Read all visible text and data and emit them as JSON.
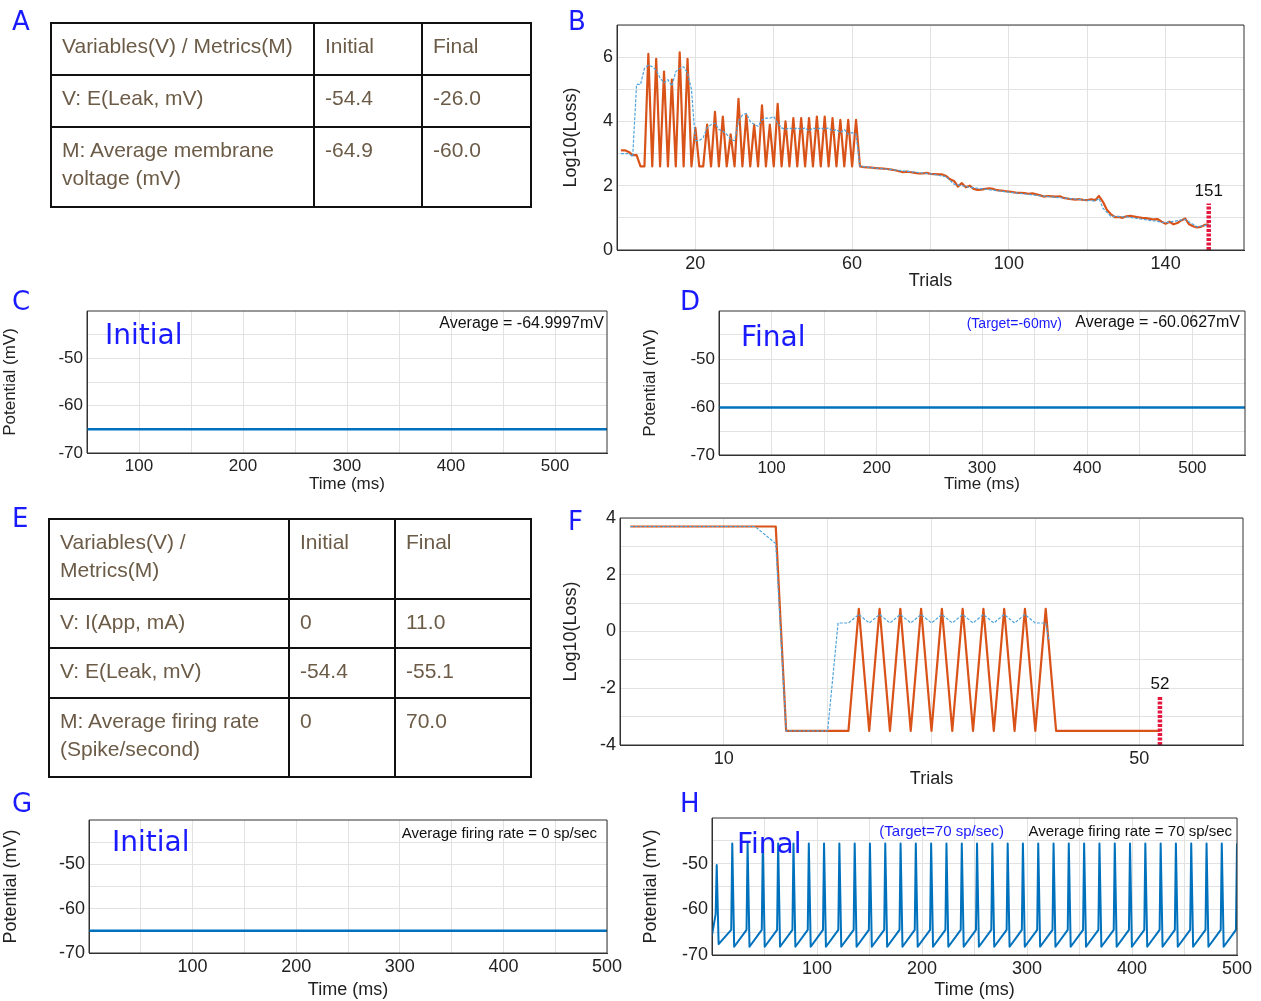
{
  "chart_data": [
    {
      "type": "other",
      "title": "A",
      "annotations": [
        "Variables(V) / Metrics(M)",
        "Initial",
        "Final",
        "V: E(Leak, mV)",
        "-54.4",
        "-26.0",
        "M: Average membrane voltage (mV)",
        "-64.9",
        "-60.0"
      ]
    },
    {
      "type": "line",
      "title": "B",
      "xlabel": "Trials",
      "ylabel": "Log10(Loss)",
      "xlim": [
        0,
        160
      ],
      "ylim": [
        0,
        7
      ],
      "xticks": [
        20,
        {
          "value": 40,
          "label": null
        },
        60,
        {
          "value": 80,
          "label": null
        },
        100,
        {
          "value": 120,
          "label": null
        },
        140
      ],
      "yticks": [
        0,
        {
          "value": 1,
          "label": null
        },
        2,
        {
          "value": 3,
          "label": null
        },
        4,
        {
          "value": 5,
          "label": null
        },
        6,
        {
          "value": 7,
          "label": null
        }
      ],
      "grid": true,
      "marker": "none",
      "series": [
        {
          "color": "#d95319",
          "line_style": "solid",
          "x": [
            1,
            2,
            3,
            4,
            5,
            6,
            7,
            8,
            9,
            10,
            11,
            12,
            13,
            14,
            15,
            16,
            17,
            18,
            19,
            20,
            21,
            22,
            23,
            24,
            25,
            26,
            27,
            28,
            29,
            30,
            31,
            32,
            33,
            34,
            35,
            36,
            37,
            38,
            39,
            40,
            41,
            42,
            43,
            44,
            45,
            46,
            47,
            48,
            49,
            50,
            51,
            52,
            53,
            54,
            55,
            56,
            57,
            58,
            59,
            60,
            61,
            62,
            63,
            64,
            65,
            66,
            67,
            68,
            69,
            70,
            71,
            72,
            73,
            74,
            75,
            76,
            77,
            78,
            79,
            80,
            81,
            82,
            83,
            84,
            85,
            86,
            87,
            88,
            89,
            90,
            91,
            92,
            93,
            94,
            95,
            96,
            97,
            98,
            99,
            100,
            101,
            102,
            103,
            104,
            105,
            106,
            107,
            108,
            109,
            110,
            111,
            112,
            113,
            114,
            115,
            116,
            117,
            118,
            119,
            120,
            121,
            122,
            123,
            124,
            125,
            126,
            127,
            128,
            129,
            130,
            131,
            132,
            133,
            134,
            135,
            136,
            137,
            138,
            139,
            140,
            141,
            142,
            143,
            144,
            145,
            146,
            147,
            148,
            149,
            150,
            151
          ],
          "values": [
            3.1,
            3.1,
            3.05,
            2.95,
            2.95,
            2.6,
            2.6,
            6.1,
            2.6,
            5.95,
            2.6,
            5.55,
            2.6,
            5.3,
            2.6,
            6.15,
            2.6,
            5.95,
            2.6,
            3.8,
            2.6,
            2.6,
            3.9,
            2.6,
            4.3,
            2.6,
            4.15,
            2.6,
            3.6,
            2.6,
            4.7,
            2.6,
            4.2,
            2.6,
            3.9,
            2.6,
            4.5,
            2.6,
            3.9,
            2.6,
            4.55,
            2.6,
            4.0,
            2.6,
            4.1,
            2.6,
            4.1,
            2.6,
            4.1,
            2.6,
            4.15,
            2.6,
            4.15,
            2.6,
            4.1,
            2.6,
            4.05,
            2.6,
            4.05,
            2.6,
            4.05,
            2.6,
            2.58,
            2.57,
            2.56,
            2.55,
            2.54,
            2.53,
            2.52,
            2.5,
            2.48,
            2.45,
            2.42,
            2.44,
            2.42,
            2.4,
            2.38,
            2.38,
            2.4,
            2.37,
            2.36,
            2.35,
            2.35,
            2.3,
            2.2,
            2.15,
            1.97,
            2.08,
            1.95,
            2.0,
            1.9,
            1.87,
            1.88,
            1.9,
            1.92,
            1.9,
            1.86,
            1.85,
            1.83,
            1.82,
            1.8,
            1.78,
            1.78,
            1.77,
            1.75,
            1.76,
            1.73,
            1.7,
            1.66,
            1.68,
            1.67,
            1.66,
            1.67,
            1.62,
            1.6,
            1.58,
            1.57,
            1.58,
            1.56,
            1.55,
            1.58,
            1.55,
            1.68,
            1.5,
            1.25,
            1.12,
            1.02,
            1.03,
            1.0,
            1.05,
            1.06,
            1.04,
            1.02,
            1.0,
            0.99,
            0.97,
            0.95,
            0.96,
            0.88,
            0.82,
            0.88,
            0.8,
            0.84,
            0.92,
            0.98,
            0.8,
            0.74,
            0.7,
            0.72,
            0.78,
            0.8
          ]
        },
        {
          "color": "#4da3dd",
          "line_style": "dashed",
          "x": [
            1,
            2,
            3,
            4,
            5,
            6,
            7,
            8,
            9,
            10,
            11,
            12,
            13,
            14,
            15,
            16,
            17,
            18,
            19,
            20,
            21,
            22,
            23,
            24,
            25,
            26,
            27,
            28,
            29,
            30,
            31,
            32,
            33,
            34,
            35,
            36,
            37,
            38,
            39,
            40,
            41,
            42,
            43,
            44,
            45,
            46,
            47,
            48,
            49,
            50,
            51,
            52,
            53,
            54,
            55,
            56,
            57,
            58,
            59,
            60,
            61,
            62,
            70,
            80,
            84,
            86,
            88,
            90,
            100,
            110,
            120,
            122,
            123,
            124,
            126,
            130,
            140,
            145,
            148,
            151
          ],
          "values": [
            3.0,
            3.0,
            3.0,
            2.9,
            5.15,
            5.15,
            5.65,
            5.75,
            5.7,
            5.6,
            5.35,
            5.2,
            5.3,
            5.1,
            5.55,
            5.65,
            5.7,
            5.5,
            5.0,
            3.4,
            3.4,
            3.5,
            3.8,
            3.9,
            3.95,
            3.75,
            3.7,
            3.6,
            3.45,
            3.4,
            4.0,
            4.2,
            4.25,
            4.0,
            3.9,
            3.85,
            4.05,
            4.1,
            4.1,
            4.15,
            3.95,
            3.8,
            3.75,
            3.8,
            3.75,
            3.8,
            3.75,
            3.8,
            3.7,
            3.8,
            3.75,
            3.8,
            3.75,
            3.8,
            3.7,
            3.75,
            3.65,
            3.75,
            3.6,
            3.65,
            3.6,
            2.6,
            2.5,
            2.37,
            2.28,
            2.05,
            2.0,
            1.95,
            1.8,
            1.66,
            1.55,
            1.52,
            1.6,
            1.3,
            1.05,
            1.03,
            0.85,
            0.95,
            0.72,
            0.78
          ]
        },
        {
          "color": "#e4173f",
          "line_style": "dashed",
          "x": [
            151,
            151
          ],
          "values": [
            0,
            1.45
          ]
        }
      ],
      "annotations": [
        {
          "text": "151",
          "x": 151,
          "y": 1.45
        }
      ]
    },
    {
      "type": "line",
      "xlabel": "Time (ms)",
      "ylabel": "Potential (mV)",
      "xlim": [
        50,
        550
      ],
      "ylim": [
        -70,
        -40
      ],
      "xticks": [
        100,
        {
          "value": 150,
          "label": null
        },
        200,
        {
          "value": 250,
          "label": null
        },
        300,
        {
          "value": 350,
          "label": null
        },
        400,
        {
          "value": 450,
          "label": null
        },
        500
      ],
      "yticks": [
        -70,
        {
          "value": -65,
          "label": null
        },
        -60,
        {
          "value": -55,
          "label": null
        },
        -50,
        {
          "value": -45,
          "label": null
        }
      ],
      "grid": true,
      "marker": "none",
      "title": "C",
      "series": [
        {
          "color": "#0072bd",
          "line_style": "solid",
          "x": [
            50,
            550
          ],
          "values": [
            -65,
            -65
          ]
        }
      ],
      "annotations": [
        "Initial",
        "Average = -64.9997mV"
      ]
    },
    {
      "type": "line",
      "xlabel": "Time (ms)",
      "ylabel": "Potential (mV)",
      "xlim": [
        50,
        550
      ],
      "ylim": [
        -70,
        -40
      ],
      "xticks": [
        100,
        {
          "value": 150,
          "label": null
        },
        200,
        {
          "value": 250,
          "label": null
        },
        300,
        {
          "value": 350,
          "label": null
        },
        400,
        {
          "value": 450,
          "label": null
        },
        500
      ],
      "yticks": [
        -70,
        {
          "value": -65,
          "label": null
        },
        -60,
        {
          "value": -55,
          "label": null
        },
        -50,
        {
          "value": -45,
          "label": null
        }
      ],
      "grid": true,
      "marker": "none",
      "title": "D",
      "series": [
        {
          "color": "#0072bd",
          "line_style": "solid",
          "x": [
            50,
            550
          ],
          "values": [
            -60.1,
            -60.1
          ]
        }
      ],
      "annotations": [
        "Final",
        "(Target=-60mv)",
        "Average = -60.0627mV"
      ]
    },
    {
      "type": "other",
      "title": "E",
      "annotations": [
        "Variables(V) / Metrics(M)",
        "Initial",
        "Final",
        "V: I(App, mA)",
        "0",
        "11.0",
        "V: E(Leak, mV)",
        "-54.4",
        "-55.1",
        "M: Average firing rate (Spike/second)",
        "0",
        "70.0"
      ]
    },
    {
      "type": "line",
      "title": "F",
      "xlabel": "Trials",
      "ylabel": "Log10(Loss)",
      "xlim": [
        0,
        60
      ],
      "ylim": [
        -4,
        4
      ],
      "xticks": [
        10,
        {
          "value": 20,
          "label": null
        },
        {
          "value": 30,
          "label": null
        },
        {
          "value": 40,
          "label": null
        },
        50
      ],
      "yticks": [
        -4,
        {
          "value": -3,
          "label": null
        },
        -2,
        {
          "value": -1,
          "label": null
        },
        0,
        {
          "value": 1,
          "label": null
        },
        2,
        {
          "value": 3,
          "label": null
        },
        4
      ],
      "grid": true,
      "marker": "none",
      "series": [
        {
          "color": "#d95319",
          "line_style": "solid",
          "x": [
            1,
            15,
            16,
            22,
            23,
            24,
            25,
            26,
            27,
            28,
            29,
            30,
            31,
            32,
            33,
            34,
            35,
            36,
            37,
            38,
            39,
            40,
            41,
            42,
            52
          ],
          "values": [
            3.7,
            3.7,
            -3.5,
            -3.5,
            0.8,
            -3.5,
            0.8,
            -3.5,
            0.8,
            -3.5,
            0.8,
            -3.5,
            0.8,
            -3.5,
            0.8,
            -3.5,
            0.8,
            -3.5,
            0.8,
            -3.5,
            0.8,
            -3.5,
            0.8,
            -3.5,
            -3.5
          ]
        },
        {
          "color": "#4da3dd",
          "line_style": "dashed",
          "x": [
            1,
            13,
            14,
            15,
            16,
            20,
            21,
            22,
            23,
            24,
            25,
            26,
            27,
            28,
            29,
            30,
            31,
            32,
            33,
            34,
            35,
            36,
            37,
            38,
            39,
            40,
            41,
            41.3
          ],
          "values": [
            3.7,
            3.7,
            3.4,
            3.1,
            -3.5,
            -3.5,
            0.3,
            0.3,
            0.6,
            0.3,
            0.6,
            0.3,
            0.6,
            0.3,
            0.6,
            0.3,
            0.6,
            0.3,
            0.6,
            0.3,
            0.6,
            0.3,
            0.6,
            0.3,
            0.6,
            0.3,
            0.3,
            -0.3
          ]
        },
        {
          "color": "#e4173f",
          "line_style": "dashed",
          "x": [
            52,
            52
          ],
          "values": [
            -4,
            -2.3
          ]
        }
      ],
      "annotations": [
        {
          "text": "52",
          "x": 52,
          "y": -2.3
        }
      ]
    },
    {
      "type": "line",
      "title": "G",
      "xlabel": "Time (ms)",
      "ylabel": "Potential (mV)",
      "xlim": [
        0,
        500
      ],
      "ylim": [
        -70,
        -40
      ],
      "xticks": [
        {
          "value": 50,
          "label": null
        },
        100,
        {
          "value": 150,
          "label": null
        },
        200,
        {
          "value": 250,
          "label": null
        },
        300,
        {
          "value": 350,
          "label": null
        },
        400,
        {
          "value": 450,
          "label": null
        },
        500
      ],
      "yticks": [
        -70,
        {
          "value": -65,
          "label": null
        },
        -60,
        {
          "value": -55,
          "label": null
        },
        -50,
        {
          "value": -45,
          "label": null
        }
      ],
      "grid": true,
      "marker": "none",
      "series": [
        {
          "color": "#0072bd",
          "line_style": "solid",
          "x": [
            0,
            500
          ],
          "values": [
            -65,
            -65
          ]
        }
      ],
      "annotations": [
        "Initial",
        "Average firing rate = 0 sp/sec"
      ]
    },
    {
      "type": "line",
      "title": "H",
      "xlabel": "Time (ms)",
      "ylabel": "Potential (mV)",
      "xlim": [
        0,
        500
      ],
      "ylim": [
        -70,
        -40
      ],
      "xticks": [
        {
          "value": 50,
          "label": null
        },
        100,
        {
          "value": 150,
          "label": null
        },
        200,
        {
          "value": 250,
          "label": null
        },
        300,
        {
          "value": 350,
          "label": null
        },
        400,
        {
          "value": 450,
          "label": null
        },
        500
      ],
      "yticks": [
        -70,
        {
          "value": -65,
          "label": null
        },
        -60,
        {
          "value": -55,
          "label": null
        },
        -50,
        {
          "value": -45,
          "label": null
        }
      ],
      "grid": true,
      "marker": "none",
      "series": [
        {
          "color": "#0072bd",
          "line_style": "solid",
          "x": [
            0,
            3.5,
            4.5,
            6.3,
            18.3,
            19.3,
            21.1,
            32.9,
            33.9,
            35.7,
            47.4,
            48.4,
            50.2,
            62.0,
            63.0,
            64.8,
            76.6,
            77.6,
            79.4,
            91.2,
            92.2,
            94.0,
            105.7,
            106.7,
            108.5,
            120.3,
            121.3,
            123.1,
            134.9,
            135.9,
            137.7,
            149.4,
            150.4,
            152.2,
            164.0,
            165.0,
            166.8,
            178.6,
            179.6,
            181.4,
            193.1,
            194.1,
            195.9,
            207.7,
            208.7,
            210.5,
            222.3,
            223.3,
            225.1,
            236.9,
            237.9,
            239.7,
            251.4,
            252.4,
            254.2,
            266.0,
            267.0,
            268.8,
            280.6,
            281.6,
            283.4,
            295.1,
            296.1,
            297.9,
            309.7,
            310.7,
            312.5,
            324.3,
            325.3,
            327.1,
            338.8,
            339.8,
            341.6,
            353.4,
            354.4,
            356.2,
            368.0,
            369.0,
            370.8,
            382.6,
            383.6,
            385.4,
            397.1,
            398.1,
            399.9,
            411.7,
            412.7,
            414.5,
            426.3,
            427.3,
            429.1,
            440.8,
            441.8,
            443.6,
            455.4,
            456.4,
            458.2,
            470.0,
            471.0,
            472.8,
            484.5,
            485.5,
            487.3,
            499.0,
            500
          ],
          "values": [
            -65.7,
            -61,
            -50.3,
            -67.6,
            -64.5,
            -45.6,
            -68.2,
            -64.5,
            -45.6,
            -68.2,
            -64.5,
            -45.6,
            -68.2,
            -64.5,
            -45.6,
            -68.2,
            -64.5,
            -45.6,
            -68.2,
            -64.5,
            -45.6,
            -68.2,
            -64.5,
            -45.6,
            -68.2,
            -64.5,
            -45.6,
            -68.2,
            -64.5,
            -45.6,
            -68.2,
            -64.5,
            -45.6,
            -68.2,
            -64.5,
            -45.6,
            -68.2,
            -64.5,
            -45.6,
            -68.2,
            -64.5,
            -45.6,
            -68.2,
            -64.5,
            -45.6,
            -68.2,
            -64.5,
            -45.6,
            -68.2,
            -64.5,
            -45.6,
            -68.2,
            -64.5,
            -45.6,
            -68.2,
            -64.5,
            -45.6,
            -68.2,
            -64.5,
            -45.6,
            -68.2,
            -64.5,
            -45.6,
            -68.2,
            -64.5,
            -45.6,
            -68.2,
            -64.5,
            -45.6,
            -68.2,
            -64.5,
            -45.6,
            -68.2,
            -64.5,
            -45.6,
            -68.2,
            -64.5,
            -45.6,
            -68.2,
            -64.5,
            -45.6,
            -68.2,
            -64.5,
            -45.6,
            -68.2,
            -64.5,
            -45.6,
            -68.2,
            -64.5,
            -45.6,
            -68.2,
            -64.5,
            -45.6,
            -68.2,
            -64.5,
            -45.6,
            -68.2,
            -64.5,
            -45.6,
            -68.2,
            -64.5,
            -45.6,
            -68.2,
            -64.5,
            -45.6
          ]
        }
      ],
      "annotations": [
        "Final",
        "(Target=70 sp/sec)",
        "Average firing rate = 70 sp/sec"
      ]
    }
  ]
}
